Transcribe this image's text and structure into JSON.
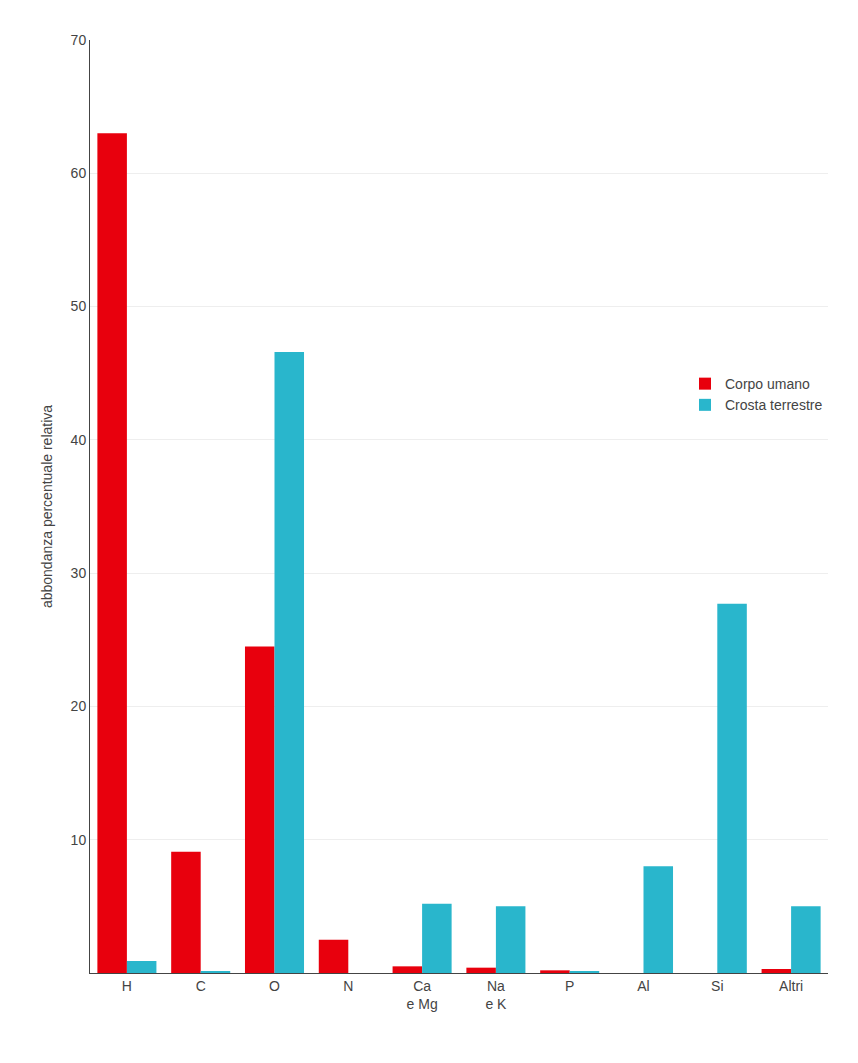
{
  "chart_data": {
    "type": "bar",
    "categories": [
      "H",
      "C",
      "O",
      "N",
      "Ca\ne Mg",
      "Na\ne K",
      "P",
      "Al",
      "Si",
      "Altri"
    ],
    "series": [
      {
        "name": "Corpo umano",
        "color": "#e8000d",
        "values": [
          63.0,
          9.1,
          24.5,
          2.5,
          0.5,
          0.4,
          0.2,
          0.0,
          0.0,
          0.3
        ]
      },
      {
        "name": "Crosta terrestre",
        "color": "#29b6cc",
        "values": [
          0.9,
          0.09,
          46.6,
          0.0,
          5.2,
          5.0,
          0.1,
          8.0,
          27.7,
          5.0
        ]
      }
    ],
    "ylabel": "abbondanza percentuale relativa",
    "ylim": [
      0,
      70
    ],
    "yticks": [
      10,
      20,
      30,
      40,
      50,
      60,
      70
    ],
    "grid": true,
    "legend": "right"
  }
}
